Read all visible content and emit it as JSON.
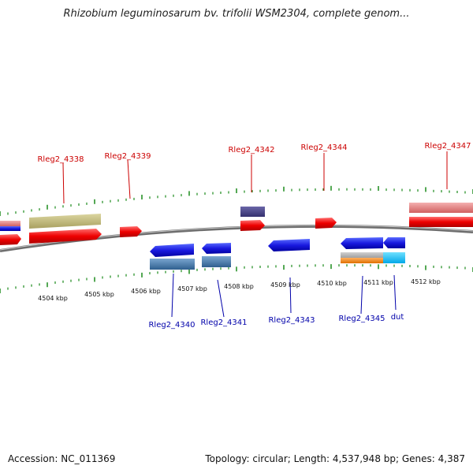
{
  "title": "Rhizobium leguminosarum bv. trifolii WSM2304, complete genom...",
  "footer": {
    "accession": "Accession: NC_011369",
    "summary": "Topology: circular; Length: 4,537,948 bp; Genes: 4,387"
  },
  "colors": {
    "backbone": "#7f7f7f",
    "tick": "#1a8a1a",
    "forward_gene": "#ff0000",
    "reverse_gene": "#0000ee",
    "forward_label": "#cc0000",
    "reverse_label": "#0000aa"
  },
  "scale": {
    "unit": "kbp",
    "ticks": [
      "4504 kbp",
      "4505 kbp",
      "4506 kbp",
      "4507 kbp",
      "4508 kbp",
      "4509 kbp",
      "4510 kbp",
      "4511 kbp",
      "4512 kbp"
    ]
  },
  "forward_labels": [
    "Rleg2_4338",
    "Rleg2_4339",
    "Rleg2_4342",
    "Rleg2_4344",
    "Rleg2_4347"
  ],
  "reverse_labels": [
    "Rleg2_4340",
    "Rleg2_4341",
    "Rleg2_4343",
    "Rleg2_4345",
    "dut"
  ]
}
